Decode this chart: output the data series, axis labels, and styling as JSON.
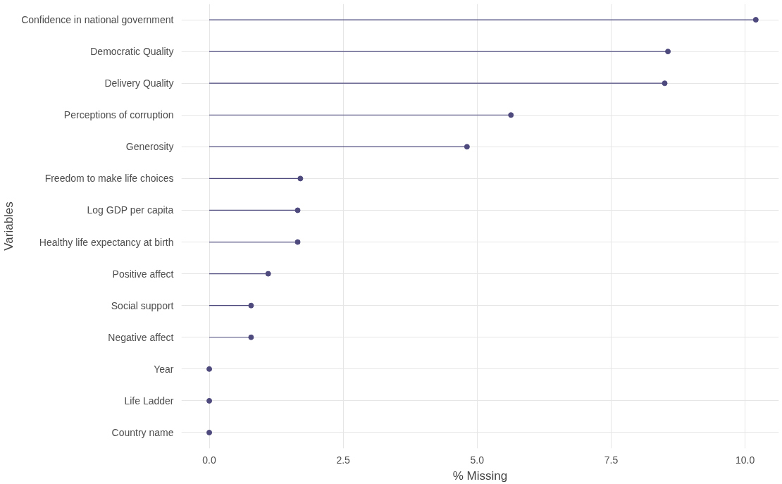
{
  "chart_data": {
    "type": "lollipop",
    "orientation": "horizontal",
    "xlabel": "% Missing",
    "ylabel": "Variables",
    "categories": [
      "Confidence in national government",
      "Democratic Quality",
      "Delivery Quality",
      "Perceptions of corruption",
      "Generosity",
      "Freedom to make life choices",
      "Log GDP per capita",
      "Healthy life expectancy at birth",
      "Positive affect",
      "Social support",
      "Negative affect",
      "Year",
      "Life Ladder",
      "Country name"
    ],
    "values": [
      10.2,
      8.56,
      8.5,
      5.63,
      4.81,
      1.7,
      1.65,
      1.65,
      1.1,
      0.78,
      0.78,
      0,
      0,
      0
    ],
    "color": "#4e4a7e",
    "marker": "circle",
    "xlim": [
      -0.52,
      10.63
    ],
    "xticks": [
      {
        "value": 0,
        "label": "0.0"
      },
      2.5,
      {
        "value": 5,
        "label": "5.0"
      },
      7.5,
      {
        "value": 10,
        "label": "10.0"
      }
    ],
    "grid": true
  }
}
